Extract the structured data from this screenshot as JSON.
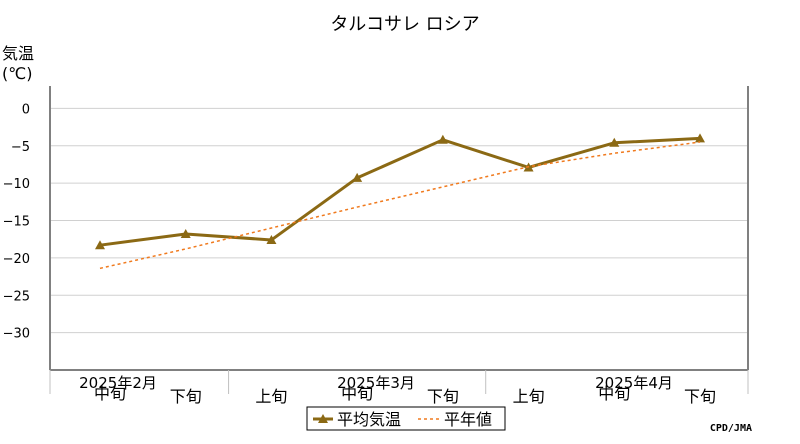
{
  "chart_data": {
    "type": "line",
    "title": "タルコサレ ロシア",
    "ylabel_line1": "気温",
    "ylabel_line2": "(℃)",
    "ylim": [
      -35,
      3
    ],
    "yticks": [
      0,
      -5,
      -10,
      -15,
      -20,
      -25,
      -30
    ],
    "ytick_labels": [
      "0",
      "-5",
      "-10",
      "-15",
      "-20",
      "-25",
      "-30"
    ],
    "x": [
      "2025年2月中旬",
      "2025年2月下旬",
      "2025年3月上旬",
      "2025年3月中旬",
      "2025年3月下旬",
      "2025年4月上旬",
      "2025年4月中旬",
      "2025年4月下旬"
    ],
    "x_dekad_labels": [
      "中旬",
      "下旬",
      "上旬",
      "中旬",
      "下旬",
      "上旬",
      "中旬",
      "下旬"
    ],
    "month_labels": [
      {
        "label": "2025年2月",
        "index": 0
      },
      {
        "label": "2025年3月",
        "index": 3
      },
      {
        "label": "2025年4月",
        "index": 6
      }
    ],
    "series": [
      {
        "name": "平均気温",
        "values": [
          -18.3,
          -16.8,
          -17.6,
          -9.3,
          -4.2,
          -7.9,
          -4.6,
          -4.0
        ],
        "color": "#8b6914",
        "style": "solid",
        "marker": "triangle"
      },
      {
        "name": "平年値",
        "values": [
          -21.4,
          -18.8,
          -16.0,
          -13.2,
          -10.5,
          -7.8,
          -6.0,
          -4.5
        ],
        "color": "#f07a1e",
        "style": "dotted"
      }
    ],
    "legend": [
      "平均気温",
      "平年値"
    ],
    "legend_position": "bottom-center",
    "grid": true,
    "credit": "CPD/JMA"
  }
}
